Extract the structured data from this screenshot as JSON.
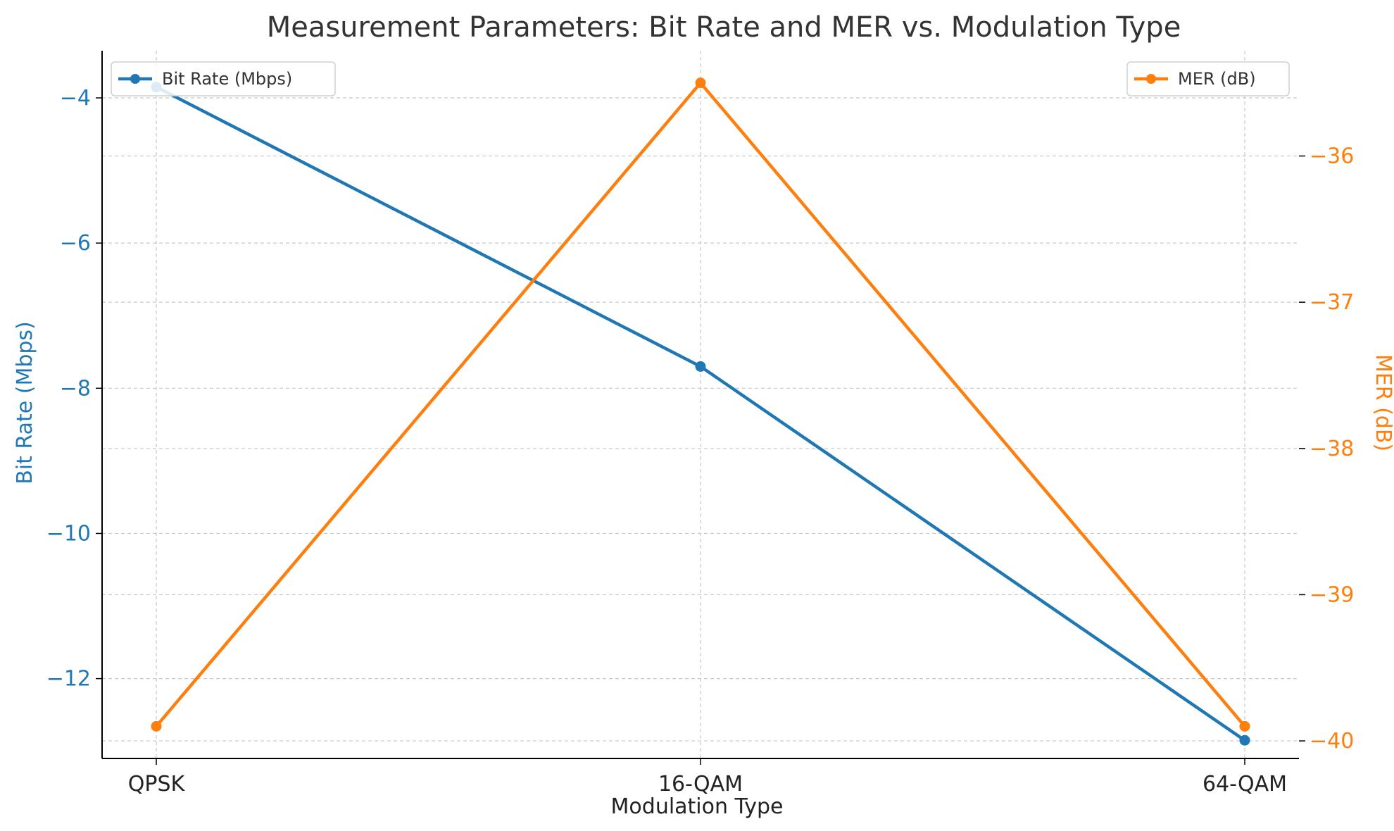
{
  "chart_data": {
    "type": "line",
    "title": "Measurement Parameters: Bit Rate and MER vs. Modulation Type",
    "xlabel": "Modulation Type",
    "categories": [
      "QPSK",
      "16-QAM",
      "64-QAM"
    ],
    "grid": true,
    "series": [
      {
        "name": "Bit Rate (Mbps)",
        "axis": "left",
        "color": "#1f77b4",
        "marker": "circle",
        "values": [
          -3.85,
          -7.7,
          -12.85
        ],
        "legend_position": "top-left"
      },
      {
        "name": "MER (dB)",
        "axis": "right",
        "color": "#ff7f0e",
        "marker": "circle",
        "values": [
          -39.9,
          -35.5,
          -39.9
        ],
        "legend_position": "top-right"
      }
    ],
    "y_left": {
      "label": "Bit Rate (Mbps)",
      "color": "#1f77b4",
      "lim": [
        -13.1,
        -3.35
      ],
      "ticks": [
        -4,
        -6,
        -8,
        -10,
        -12
      ],
      "tick_labels": [
        "−4",
        "−6",
        "−8",
        "−10",
        "−12"
      ]
    },
    "y_right": {
      "label": "MER (dB)",
      "color": "#ff7f0e",
      "lim": [
        -40.12,
        -35.28
      ],
      "ticks": [
        -36,
        -37,
        -38,
        -39,
        -40
      ],
      "tick_labels": [
        "−36",
        "−37",
        "−38",
        "−39",
        "−40"
      ]
    }
  }
}
